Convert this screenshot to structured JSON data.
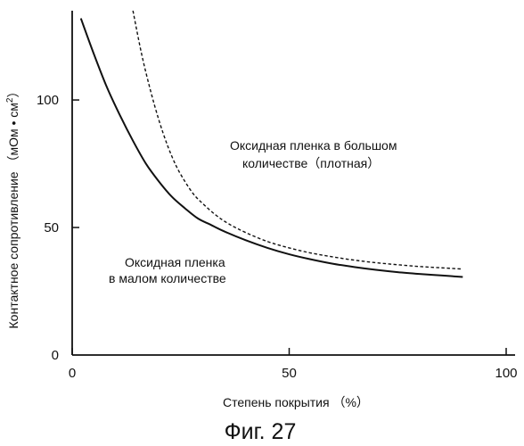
{
  "chart_data": {
    "type": "line",
    "xlabel": "Степень покрытия （%）",
    "ylabel": "Контактное сопротивление （мОм • см",
    "ylabel_sup": "2",
    "ylabel_end": "）",
    "xlim": [
      0,
      100
    ],
    "ylim": [
      0,
      135
    ],
    "xticks": [
      0,
      50,
      100
    ],
    "yticks": [
      0,
      50,
      100
    ],
    "grid": false,
    "series": [
      {
        "style": "dashed",
        "x": [
          14,
          16,
          18,
          20,
          22,
          24,
          26,
          28,
          30,
          33,
          36,
          40,
          45,
          50,
          55,
          60,
          65,
          70,
          75,
          80,
          85,
          90
        ],
        "y": [
          135,
          118,
          104,
          92,
          82,
          74,
          68,
          63,
          59.5,
          55,
          51.5,
          48,
          44.5,
          42,
          40,
          38.5,
          37.2,
          36.2,
          35.4,
          34.7,
          34.2,
          33.7
        ]
      },
      {
        "style": "solid",
        "x": [
          2,
          5,
          8,
          11,
          14,
          17,
          20,
          23,
          26,
          29,
          32,
          35,
          40,
          45,
          50,
          55,
          60,
          65,
          70,
          75,
          80,
          85,
          90
        ],
        "y": [
          132,
          118,
          105,
          94,
          84,
          75,
          68,
          62,
          57.5,
          53.5,
          51,
          48.5,
          45,
          42,
          39.5,
          37.5,
          35.8,
          34.5,
          33.4,
          32.5,
          31.8,
          31.2,
          30.6
        ]
      }
    ],
    "annotations": [
      [
        "Оксидная пленка в большом",
        "количестве（плотная）"
      ],
      [
        "Оксидная пленка",
        "в малом количестве"
      ]
    ]
  },
  "figure_caption": "Фиг. 27"
}
